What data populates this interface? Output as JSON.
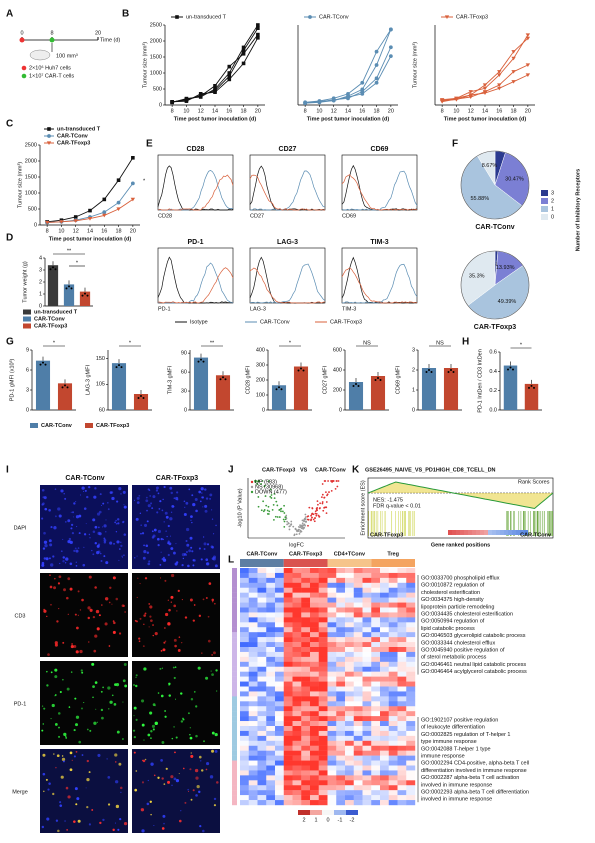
{
  "figure": {
    "panel_labels": [
      "A",
      "B",
      "C",
      "D",
      "E",
      "F",
      "G",
      "H",
      "I",
      "J",
      "K",
      "L"
    ],
    "panel_a": {
      "day_labels": [
        "0",
        "8",
        "20"
      ],
      "size": "100 mm³",
      "time": "Time (d)",
      "legend": [
        "2×10⁶ Huh7 cells",
        "1×10⁷ CAR-T cells"
      ]
    },
    "panel_e": {
      "markers": [
        "CD28",
        "CD27",
        "CD69",
        "PD-1",
        "LAG-3",
        "TIM-3"
      ],
      "legend": [
        "Isotype",
        "CAR-TConv",
        "CAR-TFoxp3"
      ]
    },
    "group_legend": [
      "CAR-TConv",
      "CAR-TFoxp3"
    ],
    "panel_f_legend_title": "Number of Inhibitory Receptors",
    "panel_i": {
      "columns": [
        "CAR-TConv",
        "CAR-TFoxp3"
      ],
      "rows": [
        "DAPI",
        "CD3",
        "PD-1",
        "Merge"
      ]
    },
    "panel_j": {
      "title": [
        "CAR-TFoxp3",
        "VS",
        "CAR-TConv"
      ],
      "ylabel": "-log10 (P Value)",
      "xlabel": "logFC",
      "legend": [
        "UP (583)",
        "NS (30968)",
        "DOWN (477)"
      ]
    },
    "panel_k": {
      "title": "GSE26495_NAIVE_VS_PD1HIGH_CD8_TCELL_DN",
      "nes": "NES: -1.475",
      "fdr": "FDR q-value < 0.01",
      "ylabel": "Enrichment score (ES)",
      "xlabel": "Gene ranked positions",
      "left": "CAR-TFoxp3",
      "right": "CAR-TConv",
      "rank": "Rank Scores"
    },
    "panel_l": {
      "columns": [
        "CAR-TConv",
        "CAR-TFoxp3",
        "CD4+TConv",
        "Treg"
      ],
      "scale": [
        "2",
        "1",
        "0",
        "-1",
        "-2"
      ],
      "terms_1": [
        "GO:0033700 phospholipid efflux",
        "GO:0010872 regulation of",
        "cholesterol esterification",
        "GO:0034375 high-density",
        "lipoprotein particle remodeling",
        "GO:0034435 cholesterol esterification",
        "GO:0050994 regulation of",
        "lipid catabolic process",
        "GO:0046503 glycerolipid catabolic process",
        "GO:0033344 cholesterol efflux",
        "GO:0045940 positive regulation of",
        "of sterol metabolic process",
        "GO:0046461 neutral lipid catabolic process",
        "GO:0046464 acylglycerol catabolic process"
      ],
      "terms_2": [
        "GO:1902107 positive regulation",
        "of leukocyte differentiation",
        "GO:0002825 regulation of T-helper 1",
        "type immune response",
        "GO:0042088 T-helper 1 type",
        "immune response",
        "GO:0002294 CD4-positive, alpha-beta T cell",
        "differentiation involved in immune response",
        "GO:0002287 alpha-beta T cell activation",
        "involved in immune response",
        "GO:0002293 alpha-beta T cell differentiation",
        "involved in immune response"
      ]
    }
  },
  "chart_data": [
    {
      "type": "line",
      "legend_label": "un-transduced T",
      "color": "#111111",
      "marker": "square",
      "x": [
        8,
        10,
        12,
        14,
        16,
        18,
        20
      ],
      "xlim": [
        7,
        21
      ],
      "xticks": [
        8,
        10,
        12,
        14,
        16,
        18,
        20
      ],
      "ylim": [
        0,
        2500
      ],
      "yticks": [
        0,
        500,
        1000,
        1500,
        2000,
        2500
      ],
      "ylabel": "Tumour size (mm³)",
      "xlabel": "Time post tumor inoculation (d)",
      "series": [
        {
          "values": [
            100,
            150,
            300,
            450,
            900,
            1700,
            2400
          ]
        },
        {
          "values": [
            80,
            200,
            250,
            500,
            1000,
            1800,
            2500
          ]
        },
        {
          "values": [
            100,
            120,
            350,
            400,
            800,
            1300,
            2100
          ]
        },
        {
          "values": [
            90,
            180,
            280,
            600,
            1200,
            1600,
            2200
          ]
        }
      ]
    },
    {
      "type": "line",
      "legend_label": "CAR-TConv",
      "color": "#5b8db3",
      "marker": "circle",
      "x": [
        8,
        10,
        12,
        14,
        16,
        18,
        20
      ],
      "xlim": [
        7,
        21
      ],
      "xticks": [
        8,
        10,
        12,
        14,
        16,
        18,
        20
      ],
      "ylim": [
        0,
        1800
      ],
      "xlabel": "Time post tumor inoculation (d)",
      "series": [
        {
          "values": [
            50,
            80,
            100,
            200,
            350,
            900,
            1700
          ]
        },
        {
          "values": [
            60,
            90,
            150,
            250,
            500,
            1200,
            1700
          ]
        },
        {
          "values": [
            50,
            70,
            120,
            150,
            300,
            600,
            1300
          ]
        },
        {
          "values": [
            40,
            60,
            100,
            180,
            250,
            500,
            1100
          ]
        }
      ]
    },
    {
      "type": "line",
      "legend_label": "CAR-TFoxp3",
      "color": "#d9603b",
      "marker": "triangle-down",
      "x": [
        8,
        10,
        12,
        14,
        16,
        18,
        20
      ],
      "xlim": [
        7,
        21
      ],
      "xticks": [
        8,
        10,
        12,
        14,
        16,
        18,
        20
      ],
      "ylim": [
        0,
        1200
      ],
      "ylabel": "Tumour size (mm³)",
      "xlabel": "Time post tumor inoculation (d)",
      "series": [
        {
          "values": [
            80,
            100,
            150,
            300,
            500,
            800,
            1000
          ]
        },
        {
          "values": [
            60,
            100,
            200,
            250,
            450,
            700,
            1050
          ]
        },
        {
          "values": [
            50,
            90,
            120,
            200,
            300,
            500,
            600
          ]
        },
        {
          "values": [
            70,
            80,
            150,
            180,
            250,
            350,
            450
          ]
        }
      ]
    },
    {
      "type": "line",
      "x": [
        8,
        10,
        12,
        14,
        16,
        18,
        20
      ],
      "xlim": [
        7,
        21
      ],
      "xticks": [
        8,
        10,
        12,
        14,
        16,
        18,
        20
      ],
      "ylim": [
        0,
        2500
      ],
      "yticks": [
        0,
        500,
        1000,
        1500,
        2000,
        2500
      ],
      "ylabel": "Tumour size (mm³)",
      "xlabel": "Time post tumor inoculation (d)",
      "annotations": [
        "*"
      ],
      "series": [
        {
          "name": "un-transduced T",
          "color": "#111111",
          "marker": "square",
          "values": [
            100,
            150,
            250,
            450,
            800,
            1400,
            2100
          ]
        },
        {
          "name": "CAR-TConv",
          "color": "#5b8db3",
          "marker": "circle",
          "values": [
            80,
            100,
            150,
            250,
            400,
            700,
            1300
          ]
        },
        {
          "name": "CAR-TFoxp3",
          "color": "#d9603b",
          "marker": "triangle-down",
          "values": [
            80,
            100,
            130,
            200,
            300,
            500,
            800
          ]
        }
      ]
    },
    {
      "type": "bar",
      "categories": [
        "un-transduced T",
        "CAR-TConv",
        "CAR-TFoxp3"
      ],
      "colors": [
        "#3a3a3a",
        "#4f7ea8",
        "#c2472f"
      ],
      "values": [
        3.4,
        1.8,
        1.2
      ],
      "ylim": [
        0,
        4
      ],
      "yticks": [
        0,
        1,
        2,
        3,
        4
      ],
      "ylabel": "Tumor weight (g)",
      "annotations": [
        "**",
        "*"
      ]
    },
    {
      "type": "pie",
      "title": "CAR-TConv",
      "categories": [
        "3",
        "2",
        "1",
        "0"
      ],
      "colors": [
        "#2b3a8f",
        "#7b7fd4",
        "#a9c4de",
        "#dfe9f0"
      ],
      "values": [
        4.98,
        30.47,
        55.88,
        8.67
      ],
      "value_labels": [
        null,
        "30.47%",
        "55.88%",
        "8.67%"
      ]
    },
    {
      "type": "pie",
      "title": "CAR-TFoxp3",
      "categories": [
        "3",
        "2",
        "1",
        "0"
      ],
      "colors": [
        "#2b3a8f",
        "#7b7fd4",
        "#a9c4de",
        "#dfe9f0"
      ],
      "values": [
        1.38,
        13.93,
        49.39,
        35.3
      ],
      "value_labels": [
        "1.38%",
        "13.93%",
        "49.39%",
        "35.3%"
      ]
    },
    {
      "type": "bar",
      "colors": [
        "#4f7ea8",
        "#c2472f"
      ],
      "values": [
        7.4,
        4.0
      ],
      "ylim": [
        0,
        9
      ],
      "yticks": [
        0,
        3,
        6,
        9
      ],
      "ylabel": "PD-1 gMFI (x10³)",
      "annotations": [
        "*"
      ]
    },
    {
      "type": "bar",
      "colors": [
        "#4f7ea8",
        "#c2472f"
      ],
      "values": [
        142,
        88
      ],
      "ylim": [
        60,
        165
      ],
      "yticks": [
        60,
        105,
        150
      ],
      "ylabel": "LAG-3 gMFI",
      "annotations": [
        "*"
      ]
    },
    {
      "type": "bar",
      "colors": [
        "#4f7ea8",
        "#c2472f"
      ],
      "values": [
        83,
        55
      ],
      "ylim": [
        0,
        95
      ],
      "yticks": [
        0,
        30,
        60,
        90
      ],
      "ylabel": "TIM-3 gMFI",
      "annotations": [
        "**"
      ]
    },
    {
      "type": "bar",
      "colors": [
        "#4f7ea8",
        "#c2472f"
      ],
      "values": [
        165,
        290
      ],
      "ylim": [
        0,
        400
      ],
      "yticks": [
        0,
        100,
        200,
        300,
        400
      ],
      "ylabel": "CD28 gMFI",
      "annotations": [
        "*"
      ]
    },
    {
      "type": "bar",
      "colors": [
        "#4f7ea8",
        "#c2472f"
      ],
      "values": [
        280,
        340
      ],
      "ylim": [
        0,
        600
      ],
      "yticks": [
        0,
        200,
        400,
        600
      ],
      "ylabel": "CD27 gMFI",
      "annotations": [
        "NS"
      ]
    },
    {
      "type": "bar",
      "colors": [
        "#4f7ea8",
        "#c2472f"
      ],
      "values": [
        2.1,
        2.1
      ],
      "ylim": [
        0,
        3
      ],
      "yticks": [
        0,
        1,
        2,
        3
      ],
      "ylabel": "CD69 gMFI",
      "annotations": [
        "NS"
      ]
    },
    {
      "type": "bar",
      "colors": [
        "#4f7ea8",
        "#c2472f"
      ],
      "values": [
        0.46,
        0.27
      ],
      "ylim": [
        0,
        0.6
      ],
      "yticks": [
        {
          "value": 0,
          "label": "0.0"
        },
        0.2,
        0.4,
        0.6
      ],
      "ylabel": "PD-1 IntDen / CD3 IntDen",
      "annotations": [
        "*"
      ]
    }
  ]
}
